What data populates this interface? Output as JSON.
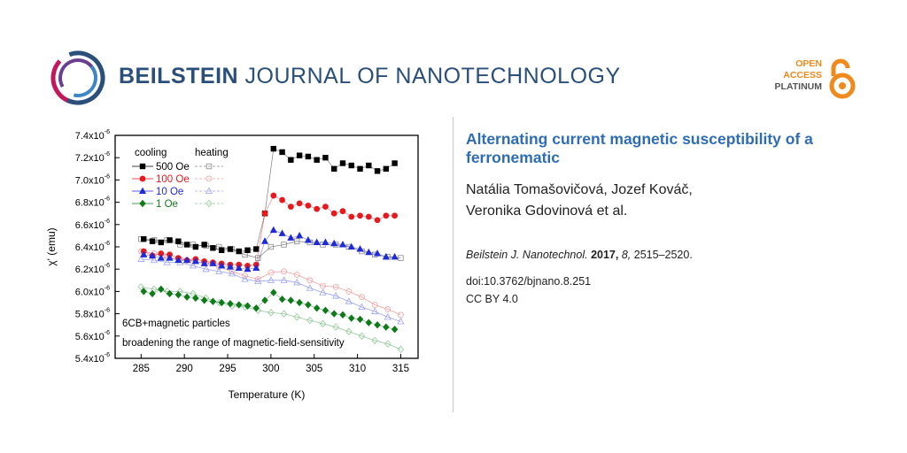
{
  "header": {
    "journal_bold": "BEILSTEIN",
    "journal_rest": "JOURNAL OF NANOTECHNOLOGY",
    "open_access": [
      "OPEN",
      "ACCESS",
      "PLATINUM"
    ]
  },
  "article": {
    "title": "Alternating current magnetic susceptibility of a ferronematic",
    "authors_line1": "Natália Tomašovičová, Jozef Kováč,",
    "authors_line2": "Veronika Gdovinová et al.",
    "journal_abbrev": "Beilstein J. Nanotechnol.",
    "year": "2017,",
    "volume": "8,",
    "pages": "2515–2520.",
    "doi": "doi:10.3762/bjnano.8.251",
    "license": "CC BY 4.0"
  },
  "colors": {
    "brand": "#2a4f7a",
    "title": "#2e6db4",
    "oa_orange": "#f08a1c",
    "s500": "#000000",
    "s100": "#e8191e",
    "s10": "#1f2bd6",
    "s1": "#0e7a19"
  },
  "chart_data": {
    "type": "scatter",
    "xlabel": "Temperature (K)",
    "ylabel": "χ' (emu)",
    "xlim": [
      282,
      317
    ],
    "ylim": [
      5.4,
      7.4
    ],
    "y_exponent": "-6",
    "xticks": [
      285,
      290,
      295,
      300,
      305,
      310,
      315
    ],
    "yticks": [
      5.4,
      5.6,
      5.8,
      6.0,
      6.2,
      6.4,
      6.6,
      6.8,
      7.0,
      7.2,
      7.4
    ],
    "legend_header_cooling": "cooling",
    "legend_header_heating": "heating",
    "annotation1": "6CB+magnetic particles",
    "annotation2": "broadening the range of magnetic-field-sensitivity",
    "series": [
      {
        "name": "500 Oe",
        "color": "#000000",
        "marker": "square",
        "cooling": {
          "x": [
            285.3,
            286.3,
            287.3,
            288.3,
            289.3,
            290.3,
            291.3,
            292.3,
            293.3,
            294.3,
            295.3,
            296.3,
            297.3,
            298.3,
            299.3,
            300.3,
            301.3,
            302.3,
            303.3,
            304.3,
            305.3,
            306.3,
            307.3,
            308.3,
            309.3,
            310.3,
            311.3,
            312.3,
            313.3,
            314.3
          ],
          "y": [
            6.47,
            6.45,
            6.44,
            6.46,
            6.45,
            6.42,
            6.4,
            6.42,
            6.39,
            6.37,
            6.38,
            6.36,
            6.37,
            6.38,
            6.7,
            7.28,
            7.25,
            7.18,
            7.22,
            7.21,
            7.18,
            7.2,
            7.1,
            7.15,
            7.13,
            7.1,
            7.13,
            7.08,
            7.1,
            7.15
          ]
        },
        "heating": {
          "x": [
            285,
            286.5,
            288,
            289.5,
            291,
            292.5,
            294,
            295.5,
            297,
            298.5,
            300,
            301.5,
            303,
            304.5,
            306,
            307.5,
            309,
            310.5,
            312,
            313.5,
            315
          ],
          "y": [
            6.47,
            6.46,
            6.46,
            6.42,
            6.42,
            6.41,
            6.4,
            6.38,
            6.33,
            6.3,
            6.4,
            6.42,
            6.45,
            6.44,
            6.42,
            6.42,
            6.4,
            6.36,
            6.33,
            6.31,
            6.3
          ]
        }
      },
      {
        "name": "100 Oe",
        "color": "#e8191e",
        "marker": "circle",
        "cooling": {
          "x": [
            285.3,
            286.3,
            287.3,
            288.3,
            289.3,
            290.3,
            291.3,
            292.3,
            293.3,
            294.3,
            295.3,
            296.3,
            297.3,
            298.3,
            299.3,
            300.3,
            301.3,
            302.3,
            303.3,
            304.3,
            305.3,
            306.3,
            307.3,
            308.3,
            309.3,
            310.3,
            311.3,
            312.3,
            313.3,
            314.3
          ],
          "y": [
            6.36,
            6.32,
            6.34,
            6.33,
            6.3,
            6.28,
            6.29,
            6.27,
            6.26,
            6.25,
            6.24,
            6.24,
            6.23,
            6.24,
            6.7,
            6.86,
            6.82,
            6.76,
            6.79,
            6.77,
            6.74,
            6.76,
            6.7,
            6.72,
            6.67,
            6.68,
            6.67,
            6.64,
            6.68,
            6.68
          ]
        },
        "heating": {
          "x": [
            285,
            286.5,
            288,
            289.5,
            291,
            292.5,
            294,
            295.5,
            297,
            298.5,
            300,
            301.5,
            303,
            304.5,
            306,
            307.5,
            309,
            310.5,
            312,
            313.5,
            315
          ],
          "y": [
            6.36,
            6.34,
            6.31,
            6.29,
            6.27,
            6.25,
            6.22,
            6.18,
            6.14,
            6.11,
            6.17,
            6.18,
            6.15,
            6.1,
            6.05,
            6.04,
            6.0,
            5.95,
            5.88,
            5.84,
            5.79
          ]
        }
      },
      {
        "name": "10 Oe",
        "color": "#1f2bd6",
        "marker": "triangle",
        "cooling": {
          "x": [
            285.3,
            286.3,
            287.3,
            288.3,
            289.3,
            290.3,
            291.3,
            292.3,
            293.3,
            294.3,
            295.3,
            296.3,
            297.3,
            298.3,
            299.3,
            300.3,
            301.3,
            302.3,
            303.3,
            304.3,
            305.3,
            306.3,
            307.3,
            308.3,
            309.3,
            310.3,
            311.3,
            312.3,
            313.3,
            314.3
          ],
          "y": [
            6.33,
            6.32,
            6.3,
            6.3,
            6.28,
            6.28,
            6.27,
            6.25,
            6.25,
            6.23,
            6.22,
            6.21,
            6.2,
            6.21,
            6.45,
            6.55,
            6.52,
            6.48,
            6.5,
            6.46,
            6.44,
            6.44,
            6.43,
            6.42,
            6.4,
            6.38,
            6.35,
            6.34,
            6.31,
            6.31
          ]
        },
        "heating": {
          "x": [
            285,
            286.5,
            288,
            289.5,
            291,
            292.5,
            294,
            295.5,
            297,
            298.5,
            300,
            301.5,
            303,
            304.5,
            306,
            307.5,
            309,
            310.5,
            312,
            313.5,
            315
          ],
          "y": [
            6.29,
            6.28,
            6.26,
            6.26,
            6.23,
            6.2,
            6.18,
            6.16,
            6.11,
            6.09,
            6.1,
            6.1,
            6.08,
            6.03,
            5.99,
            5.96,
            5.91,
            5.86,
            5.82,
            5.77,
            5.73
          ]
        }
      },
      {
        "name": "1 Oe",
        "color": "#0e7a19",
        "marker": "diamond",
        "cooling": {
          "x": [
            285.3,
            286.3,
            287.3,
            288.3,
            289.3,
            290.3,
            291.3,
            292.3,
            293.3,
            294.3,
            295.3,
            296.3,
            297.3,
            298.3,
            299.3,
            300.3,
            301.3,
            302.3,
            303.3,
            304.3,
            305.3,
            306.3,
            307.3,
            308.3,
            309.3,
            310.3,
            311.3,
            312.3,
            313.3,
            314.3
          ],
          "y": [
            6.0,
            5.98,
            6.02,
            5.98,
            5.97,
            5.95,
            5.94,
            5.92,
            5.91,
            5.9,
            5.89,
            5.88,
            5.87,
            5.85,
            5.92,
            5.99,
            5.93,
            5.92,
            5.9,
            5.88,
            5.85,
            5.83,
            5.8,
            5.79,
            5.76,
            5.75,
            5.72,
            5.7,
            5.68,
            5.66
          ]
        },
        "heating": {
          "x": [
            285,
            286.5,
            288,
            289.5,
            291,
            292.5,
            294,
            295.5,
            297,
            298.5,
            300,
            301.5,
            303,
            304.5,
            306,
            307.5,
            309,
            310.5,
            312,
            313.5,
            315
          ],
          "y": [
            6.04,
            6.02,
            6.0,
            6.0,
            5.98,
            5.94,
            5.9,
            5.87,
            5.86,
            5.83,
            5.81,
            5.8,
            5.77,
            5.74,
            5.71,
            5.68,
            5.64,
            5.6,
            5.56,
            5.53,
            5.48
          ]
        }
      }
    ]
  }
}
